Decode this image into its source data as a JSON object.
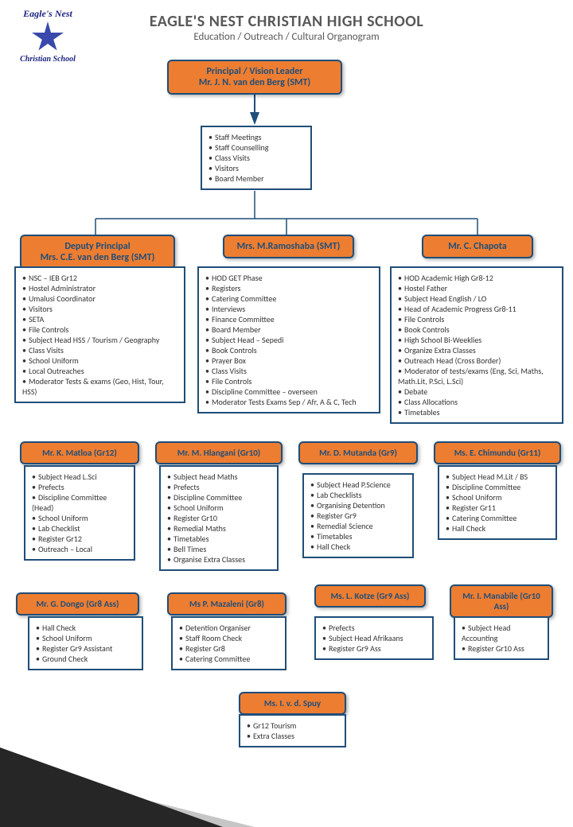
{
  "logo": {
    "top": "Eagle's Nest",
    "bottom": "Christian School"
  },
  "header": {
    "title": "EAGLE'S NEST CHRISTIAN HIGH SCHOOL",
    "subtitle": "Education / Outreach / Cultural Organogram"
  },
  "colors": {
    "box_fill": "#ed7d31",
    "box_border": "#1f4e79",
    "text_dark": "#1f4e79",
    "header_text": "#595959"
  },
  "principal": {
    "line1": "Principal / Vision Leader",
    "line2": "Mr. J. N. van den Berg (SMT)",
    "duties": [
      "Staff Meetings",
      "Staff Counselling",
      "Class Visits",
      "Visitors",
      "Board Member"
    ]
  },
  "tier2": [
    {
      "line1": "Deputy Principal",
      "line2": "Mrs. C.E. van den Berg (SMT)",
      "duties": [
        "NSC – IEB Gr12",
        "Hostel Administrator",
        "Umalusi Coordinator",
        "Visitors",
        "SETA",
        "File Controls",
        "Subject Head HSS / Tourism / Geography",
        "Class Visits",
        "School Uniform",
        "Local Outreaches",
        "Moderator Tests & exams (Geo, Hist, Tour, HSS)"
      ]
    },
    {
      "line1": "Mrs. M.Ramoshaba (SMT)",
      "line2": "",
      "duties": [
        "HOD GET Phase",
        "Registers",
        "Catering Committee",
        "Interviews",
        "Finance Committee",
        "Board Member",
        "Subject Head – Sepedi",
        "Book Controls",
        "Prayer Box",
        "Class Visits",
        "File Controls",
        "Discipline Committee – overseen",
        "Moderator Tests  Exams Sep / Afr, A & C, Tech"
      ]
    },
    {
      "line1": "Mr. C. Chapota",
      "line2": "",
      "duties": [
        "HOD Academic High Gr8-12",
        "Hostel Father",
        "Subject Head English / LO",
        "Head of Academic Progress Gr8-11",
        "File Controls",
        "Book Controls",
        "High School Bi-Weeklies",
        "Organize Extra Classes",
        "Outreach Head (Cross Border)",
        "Moderator of tests/exams (Eng, Sci, Maths, Math.Lit, P.Sci, L.Sci)",
        "Debate",
        "Class Allocations",
        "Timetables"
      ]
    }
  ],
  "tier3": [
    {
      "line1": "Mr. K. Matloa (Gr12)",
      "duties": [
        "Subject Head L.Sci",
        "Prefects",
        "Discipline Committee (Head)",
        "School Uniform",
        "Lab Checklist",
        "Register Gr12",
        "Outreach – Local"
      ]
    },
    {
      "line1": "Mr. M. Hlangani (Gr10)",
      "duties": [
        "Subject head Maths",
        "Prefects",
        "Discipline Committee",
        "School Uniform",
        "Register Gr10",
        "Remedial Maths",
        "Timetables",
        "Bell Times",
        "Organise Extra Classes"
      ]
    },
    {
      "line1": "Mr. D. Mutanda (Gr9)",
      "duties": [
        "Subject Head P.Science",
        "Lab Checklists",
        "Organising Detention",
        "Register Gr9",
        "Remedial Science",
        "Timetables",
        "Hall Check"
      ]
    },
    {
      "line1": "Ms. E. Chimundu (Gr11)",
      "duties": [
        "Subject Head M.Lit / BS",
        "Discipline Committee",
        "School Uniform",
        "Register Gr11",
        "Catering Committee",
        "Hall Check"
      ]
    }
  ],
  "tier4": [
    {
      "line1": "Mr. G. Dongo (Gr8 Ass)",
      "duties": [
        "Hall Check",
        "School Uniform",
        "Register Gr9 Assistant",
        "Ground Check"
      ]
    },
    {
      "line1": "Ms P. Mazaleni (Gr8)",
      "duties": [
        "Detention Organiser",
        "Staff Room Check",
        "Register Gr8",
        "Catering Committee"
      ]
    },
    {
      "line1": "Ms. L. Kotze (Gr9 Ass)",
      "duties": [
        "Prefects",
        "Subject Head Afrikaans",
        "Register Gr9 Ass"
      ]
    },
    {
      "line1": "Mr. I. Manabile (Gr10 Ass)",
      "duties": [
        "Subject Head Accounting",
        "Register Gr10 Ass"
      ]
    }
  ],
  "tier5": [
    {
      "line1": "Ms. I. v. d. Spuy",
      "duties": [
        "Gr12 Tourism",
        "Extra Classes"
      ]
    }
  ]
}
